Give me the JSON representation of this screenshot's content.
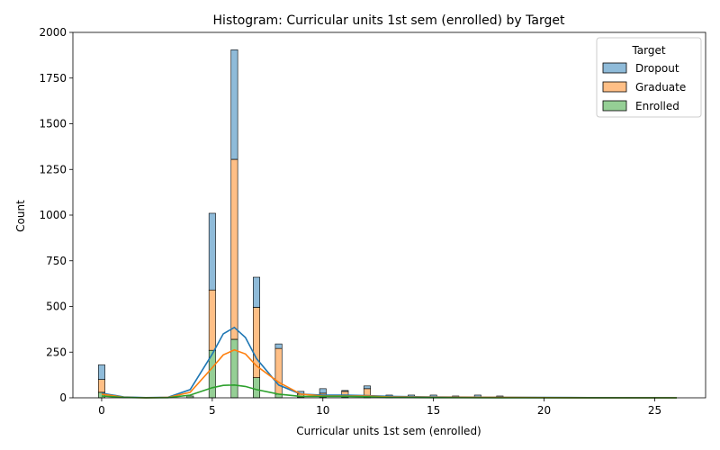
{
  "chart_data": {
    "type": "bar",
    "title": "Histogram: Curricular units 1st sem (enrolled) by Target",
    "xlabel": "Curricular units 1st sem (enrolled)",
    "ylabel": "Count",
    "xlim": [
      -1.3,
      27.3
    ],
    "ylim": [
      0,
      2000
    ],
    "xticks": [
      0,
      5,
      10,
      15,
      20,
      25
    ],
    "yticks": [
      0,
      250,
      500,
      750,
      1000,
      1250,
      1500,
      1750,
      2000
    ],
    "stacked": true,
    "legend": {
      "title": "Target",
      "position": "top-right"
    },
    "series": [
      {
        "name": "Enrolled",
        "color": "#2ca02c",
        "points": [
          [
            0,
            30
          ],
          [
            4,
            10
          ],
          [
            5,
            260
          ],
          [
            6,
            320
          ],
          [
            7,
            110
          ],
          [
            8,
            20
          ],
          [
            9,
            5
          ],
          [
            10,
            5
          ],
          [
            11,
            5
          ],
          [
            12,
            10
          ]
        ]
      },
      {
        "name": "Graduate",
        "color": "#ff7f0e",
        "points": [
          [
            0,
            70
          ],
          [
            4,
            0
          ],
          [
            5,
            330
          ],
          [
            6,
            985
          ],
          [
            7,
            385
          ],
          [
            8,
            250
          ],
          [
            9,
            15
          ],
          [
            10,
            20
          ],
          [
            11,
            30
          ],
          [
            12,
            40
          ],
          [
            13,
            5
          ],
          [
            14,
            5
          ],
          [
            15,
            5
          ],
          [
            17,
            5
          ],
          [
            18,
            5
          ]
        ]
      },
      {
        "name": "Dropout",
        "color": "#1f77b4",
        "points": [
          [
            0,
            80
          ],
          [
            4,
            0
          ],
          [
            5,
            420
          ],
          [
            6,
            600
          ],
          [
            7,
            165
          ],
          [
            8,
            25
          ],
          [
            9,
            15
          ],
          [
            10,
            25
          ],
          [
            11,
            5
          ],
          [
            12,
            15
          ],
          [
            13,
            10
          ],
          [
            14,
            10
          ],
          [
            15,
            10
          ],
          [
            16,
            10
          ],
          [
            17,
            10
          ],
          [
            18,
            5
          ]
        ]
      }
    ],
    "kde": [
      {
        "name": "Dropout",
        "color": "#1f77b4",
        "points": [
          [
            0,
            25
          ],
          [
            1,
            5
          ],
          [
            2,
            1
          ],
          [
            3,
            3
          ],
          [
            4,
            45
          ],
          [
            5,
            240
          ],
          [
            5.5,
            350
          ],
          [
            6,
            385
          ],
          [
            6.5,
            330
          ],
          [
            7,
            215
          ],
          [
            8,
            70
          ],
          [
            9,
            20
          ],
          [
            10,
            15
          ],
          [
            11,
            15
          ],
          [
            12,
            12
          ],
          [
            13,
            8
          ],
          [
            15,
            5
          ],
          [
            18,
            3
          ],
          [
            22,
            1
          ],
          [
            26,
            0
          ]
        ]
      },
      {
        "name": "Graduate",
        "color": "#ff7f0e",
        "points": [
          [
            0,
            20
          ],
          [
            1,
            3
          ],
          [
            2,
            0
          ],
          [
            3,
            2
          ],
          [
            4,
            30
          ],
          [
            5,
            165
          ],
          [
            5.5,
            235
          ],
          [
            6,
            262
          ],
          [
            6.5,
            240
          ],
          [
            7,
            175
          ],
          [
            8,
            85
          ],
          [
            9,
            20
          ],
          [
            10,
            10
          ],
          [
            11,
            10
          ],
          [
            12,
            10
          ],
          [
            13,
            5
          ],
          [
            15,
            3
          ],
          [
            18,
            2
          ],
          [
            22,
            0
          ],
          [
            26,
            0
          ]
        ]
      },
      {
        "name": "Enrolled",
        "color": "#2ca02c",
        "points": [
          [
            0,
            10
          ],
          [
            1,
            2
          ],
          [
            2,
            0
          ],
          [
            3,
            1
          ],
          [
            4,
            15
          ],
          [
            5,
            55
          ],
          [
            5.5,
            68
          ],
          [
            6,
            70
          ],
          [
            6.5,
            62
          ],
          [
            7,
            45
          ],
          [
            8,
            20
          ],
          [
            9,
            8
          ],
          [
            10,
            8
          ],
          [
            11,
            8
          ],
          [
            12,
            6
          ],
          [
            13,
            2
          ],
          [
            15,
            1
          ],
          [
            18,
            0
          ],
          [
            26,
            0
          ]
        ]
      }
    ],
    "bar_width": 0.3
  }
}
